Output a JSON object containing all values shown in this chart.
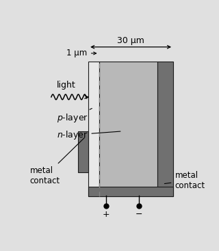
{
  "bg_color": "#e0e0e0",
  "p_layer_color": "#e8e8e8",
  "n_layer_color": "#b8b8b8",
  "dark_color": "#707070",
  "very_dark_color": "#606060",
  "outline_color": "#1a1a1a",
  "fig_width": 3.2,
  "fig_height": 3.67,
  "label_30um": "30 μm",
  "label_1um": "1 μm",
  "label_light": "light",
  "label_p_layer": "$p$-layer",
  "label_n_layer": "$n$-layer",
  "label_metal_contact": "metal\ncontact",
  "label_plus": "+",
  "label_minus": "−"
}
